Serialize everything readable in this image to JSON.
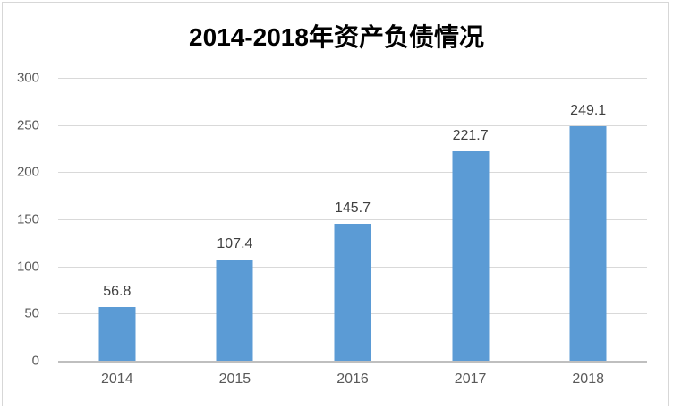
{
  "chart_data": {
    "type": "bar",
    "title": "2014-2018年资产负债情况",
    "categories": [
      "2014",
      "2015",
      "2016",
      "2017",
      "2018"
    ],
    "values": [
      56.8,
      107.4,
      145.7,
      221.7,
      249.1
    ],
    "data_labels": [
      "56.8",
      "107.4",
      "145.7",
      "221.7",
      "249.1"
    ],
    "xlabel": "",
    "ylabel": "",
    "ylim": [
      0,
      300
    ],
    "ytick_step": 50,
    "ytick_labels": [
      "0",
      "50",
      "100",
      "150",
      "200",
      "250",
      "300"
    ],
    "grid": true,
    "legend_position": "none",
    "colors": {
      "bar_fill": "#5b9bd5",
      "gridline": "#d9d9d9",
      "axis_line": "#bfbfbf",
      "tick_label": "#595959",
      "data_label": "#404040",
      "title": "#000000",
      "frame_border": "#d7d7d7",
      "background": "#ffffff"
    }
  }
}
